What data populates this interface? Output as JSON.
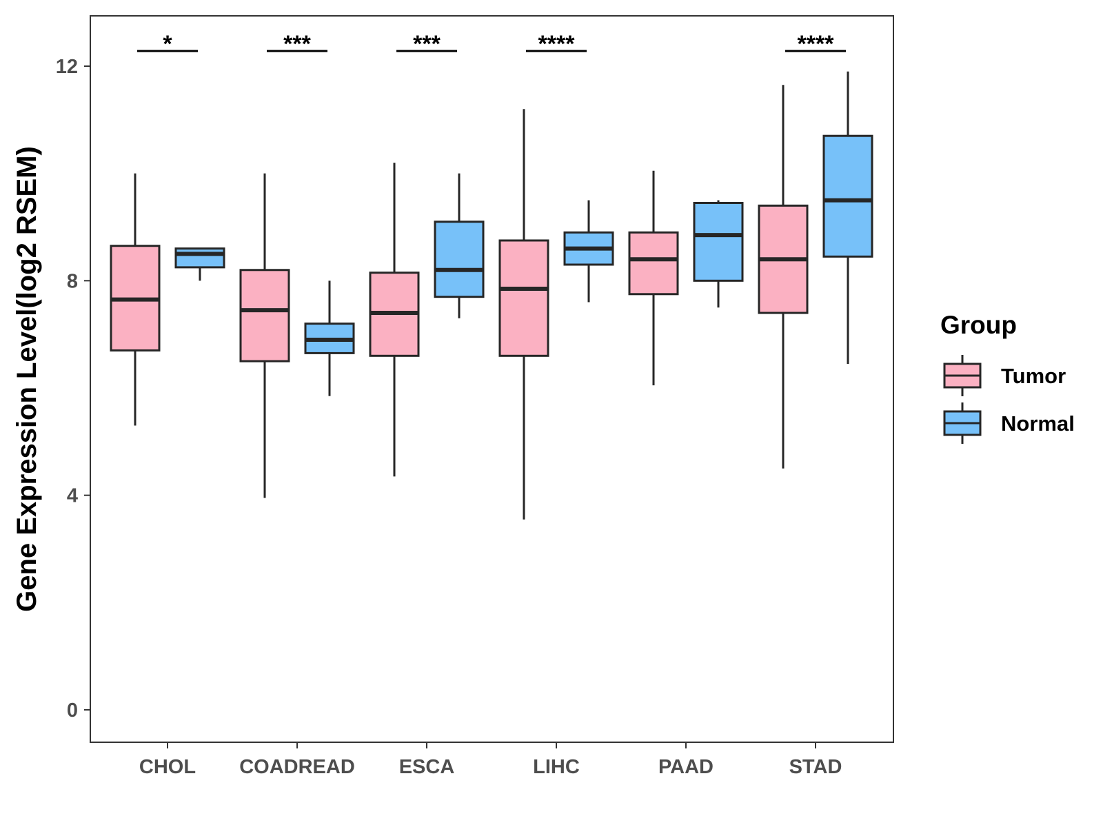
{
  "chart_data": {
    "type": "box",
    "title": "",
    "xlabel": "",
    "ylabel": "Gene Expression Level(log2 RSEM)",
    "ylim": [
      -0.6,
      13.0
    ],
    "yticks": [
      0,
      4,
      8,
      12
    ],
    "grid": false,
    "legend": {
      "title": "Group",
      "placement": "right"
    },
    "categories": [
      "CHOL",
      "COADREAD",
      "ESCA",
      "LIHC",
      "PAAD",
      "STAD"
    ],
    "series": [
      {
        "name": "Tumor",
        "color": "#FBB1C2",
        "boxes": [
          {
            "min": 5.3,
            "q1": 6.7,
            "median": 7.65,
            "q3": 8.65,
            "max": 10.0
          },
          {
            "min": 3.95,
            "q1": 6.5,
            "median": 7.45,
            "q3": 8.2,
            "max": 10.0
          },
          {
            "min": 4.35,
            "q1": 6.6,
            "median": 7.4,
            "q3": 8.15,
            "max": 10.2
          },
          {
            "min": 3.55,
            "q1": 6.6,
            "median": 7.85,
            "q3": 8.75,
            "max": 11.2
          },
          {
            "min": 6.05,
            "q1": 7.75,
            "median": 8.4,
            "q3": 8.9,
            "max": 10.05
          },
          {
            "min": 4.5,
            "q1": 7.4,
            "median": 8.4,
            "q3": 9.4,
            "max": 11.65
          }
        ]
      },
      {
        "name": "Normal",
        "color": "#77C1F9",
        "boxes": [
          {
            "min": 8.0,
            "q1": 8.25,
            "median": 8.5,
            "q3": 8.6,
            "max": 8.6
          },
          {
            "min": 5.85,
            "q1": 6.65,
            "median": 6.9,
            "q3": 7.2,
            "max": 8.0
          },
          {
            "min": 7.3,
            "q1": 7.7,
            "median": 8.2,
            "q3": 9.1,
            "max": 10.0
          },
          {
            "min": 7.6,
            "q1": 8.3,
            "median": 8.6,
            "q3": 8.9,
            "max": 9.5
          },
          {
            "min": 7.5,
            "q1": 8.0,
            "median": 8.85,
            "q3": 9.45,
            "max": 9.5
          },
          {
            "min": 6.45,
            "q1": 8.45,
            "median": 9.5,
            "q3": 10.7,
            "max": 11.9
          }
        ]
      }
    ],
    "significance": [
      "*",
      "***",
      "***",
      "****",
      "",
      "****"
    ]
  }
}
